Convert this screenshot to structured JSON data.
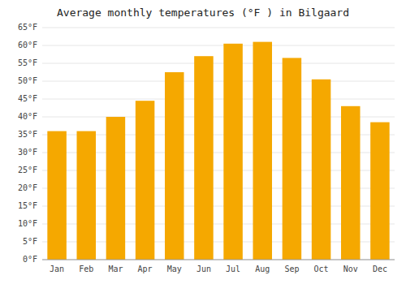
{
  "chart_data": {
    "type": "bar",
    "title": "Average monthly temperatures (°F ) in Bilgaard",
    "categories": [
      "Jan",
      "Feb",
      "Mar",
      "Apr",
      "May",
      "Jun",
      "Jul",
      "Aug",
      "Sep",
      "Oct",
      "Nov",
      "Dec"
    ],
    "values": [
      36,
      36,
      40,
      44.5,
      52.5,
      57,
      60.5,
      61,
      56.5,
      50.5,
      43,
      38.5
    ],
    "color": "#F5A800",
    "ylim": [
      0,
      65
    ],
    "yticks": [
      {
        "value": 0,
        "label": "0°F"
      },
      {
        "value": 5,
        "label": "5°F"
      },
      {
        "value": 10,
        "label": "10°F"
      },
      {
        "value": 15,
        "label": "15°F"
      },
      {
        "value": 20,
        "label": "20°F"
      },
      {
        "value": 25,
        "label": "25°F"
      },
      {
        "value": 30,
        "label": "30°F"
      },
      {
        "value": 35,
        "label": "35°F"
      },
      {
        "value": 40,
        "label": "40°F"
      },
      {
        "value": 45,
        "label": "45°F"
      },
      {
        "value": 50,
        "label": "50°F"
      },
      {
        "value": 55,
        "label": "55°F"
      },
      {
        "value": 60,
        "label": "60°F"
      },
      {
        "value": 65,
        "label": "65°F"
      }
    ],
    "grid": true
  }
}
